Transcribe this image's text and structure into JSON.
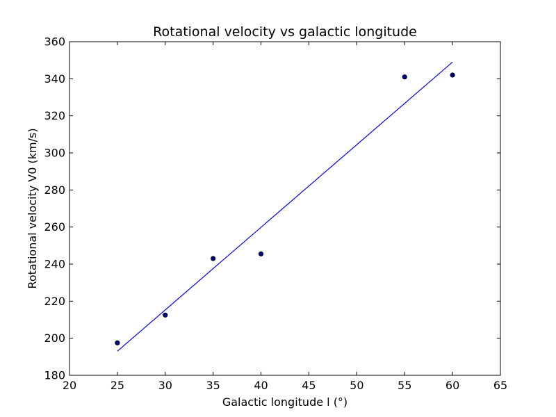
{
  "chart_data": {
    "type": "scatter",
    "title": "Rotational velocity vs galactic longitude",
    "xlabel": "Galactic longitude l (°)",
    "ylabel": "Rotational velocity V0 (km/s)",
    "xlim": [
      20,
      65
    ],
    "ylim": [
      180,
      360
    ],
    "x_ticks": [
      20,
      25,
      30,
      35,
      40,
      45,
      50,
      55,
      60,
      65
    ],
    "y_ticks": [
      180,
      200,
      220,
      240,
      260,
      280,
      300,
      320,
      340,
      360
    ],
    "grid": false,
    "series": [
      {
        "kind": "scatter",
        "color": "#00007f",
        "edge_color": "#000000",
        "x": [
          25,
          30,
          35,
          40,
          55,
          60
        ],
        "y": [
          197.5,
          212.5,
          243,
          245.5,
          341,
          342
        ]
      },
      {
        "kind": "line",
        "color": "#0000ff",
        "x": [
          25,
          60
        ],
        "y": [
          193,
          349
        ]
      }
    ]
  }
}
